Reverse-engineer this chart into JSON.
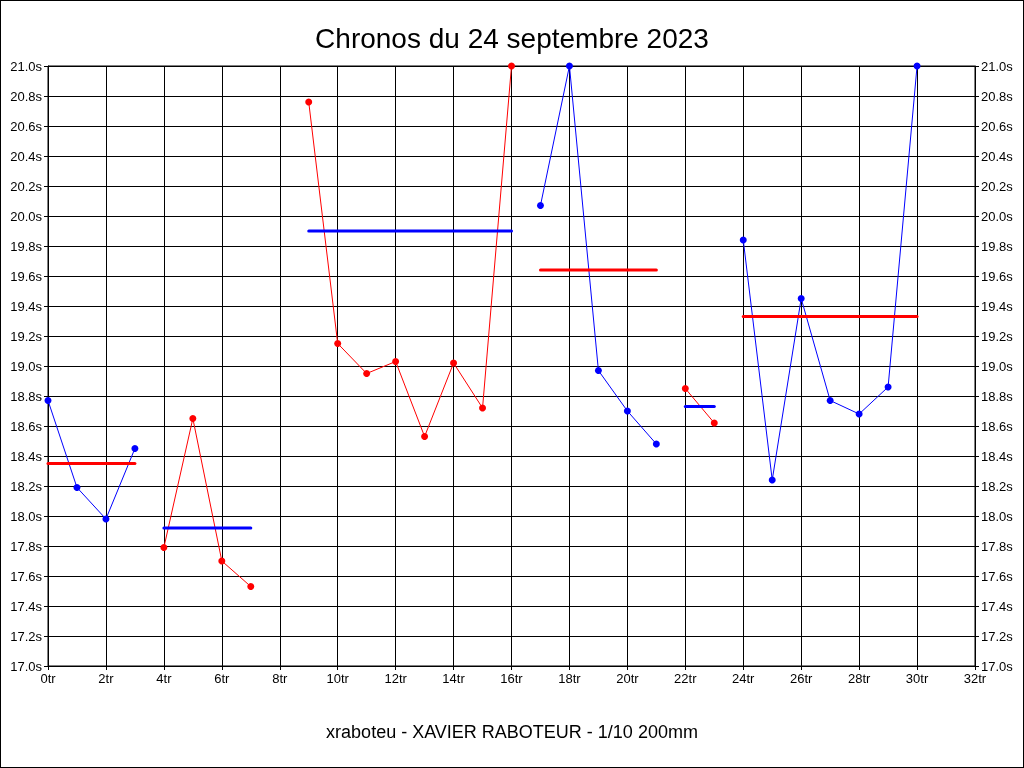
{
  "chart_data": {
    "type": "line",
    "title": "Chronos du 24 septembre 2023",
    "annotations": [
      "xraboteu - XAVIER RABOTEUR - 1/10 200mm"
    ],
    "xlim": [
      0,
      32
    ],
    "xticks": [
      {
        "value": 0,
        "label": "0tr"
      },
      {
        "value": 2,
        "label": "2tr"
      },
      {
        "value": 4,
        "label": "4tr"
      },
      {
        "value": 6,
        "label": "6tr"
      },
      {
        "value": 8,
        "label": "8tr"
      },
      {
        "value": 10,
        "label": "10tr"
      },
      {
        "value": 12,
        "label": "12tr"
      },
      {
        "value": 14,
        "label": "14tr"
      },
      {
        "value": 16,
        "label": "16tr"
      },
      {
        "value": 18,
        "label": "18tr"
      },
      {
        "value": 20,
        "label": "20tr"
      },
      {
        "value": 22,
        "label": "22tr"
      },
      {
        "value": 24,
        "label": "24tr"
      },
      {
        "value": 26,
        "label": "26tr"
      },
      {
        "value": 28,
        "label": "28tr"
      },
      {
        "value": 30,
        "label": "30tr"
      },
      {
        "value": 32,
        "label": "32tr"
      }
    ],
    "ylim": [
      17,
      21
    ],
    "yticks": [
      {
        "value": 17.0,
        "label": "17.0s"
      },
      {
        "value": 17.2,
        "label": "17.2s"
      },
      {
        "value": 17.4,
        "label": "17.4s"
      },
      {
        "value": 17.6,
        "label": "17.6s"
      },
      {
        "value": 17.8,
        "label": "17.8s"
      },
      {
        "value": 18.0,
        "label": "18.0s"
      },
      {
        "value": 18.2,
        "label": "18.2s"
      },
      {
        "value": 18.4,
        "label": "18.4s"
      },
      {
        "value": 18.6,
        "label": "18.6s"
      },
      {
        "value": 18.8,
        "label": "18.8s"
      },
      {
        "value": 19.0,
        "label": "19.0s"
      },
      {
        "value": 19.2,
        "label": "19.2s"
      },
      {
        "value": 19.4,
        "label": "19.4s"
      },
      {
        "value": 19.6,
        "label": "19.6s"
      },
      {
        "value": 19.8,
        "label": "19.8s"
      },
      {
        "value": 20.0,
        "label": "20.0s"
      },
      {
        "value": 20.2,
        "label": "20.2s"
      },
      {
        "value": 20.4,
        "label": "20.4s"
      },
      {
        "value": 20.6,
        "label": "20.6s"
      },
      {
        "value": 20.8,
        "label": "20.8s"
      },
      {
        "value": 21.0,
        "label": "21.0s"
      }
    ],
    "y2lim": [
      17,
      21
    ],
    "y2ticks": [
      {
        "value": 17.0,
        "label": "17.0s"
      },
      {
        "value": 17.2,
        "label": "17.2s"
      },
      {
        "value": 17.4,
        "label": "17.4s"
      },
      {
        "value": 17.6,
        "label": "17.6s"
      },
      {
        "value": 17.8,
        "label": "17.8s"
      },
      {
        "value": 18.0,
        "label": "18.0s"
      },
      {
        "value": 18.2,
        "label": "18.2s"
      },
      {
        "value": 18.4,
        "label": "18.4s"
      },
      {
        "value": 18.6,
        "label": "18.6s"
      },
      {
        "value": 18.8,
        "label": "18.8s"
      },
      {
        "value": 19.0,
        "label": "19.0s"
      },
      {
        "value": 19.2,
        "label": "19.2s"
      },
      {
        "value": 19.4,
        "label": "19.4s"
      },
      {
        "value": 19.6,
        "label": "19.6s"
      },
      {
        "value": 19.8,
        "label": "19.8s"
      },
      {
        "value": 20.0,
        "label": "20.0s"
      },
      {
        "value": 20.2,
        "label": "20.2s"
      },
      {
        "value": 20.4,
        "label": "20.4s"
      },
      {
        "value": 20.6,
        "label": "20.6s"
      },
      {
        "value": 20.8,
        "label": "20.8s"
      },
      {
        "value": 21.0,
        "label": "21.0s"
      }
    ],
    "grid": true,
    "marker": "circle",
    "series": [
      {
        "color": "#0000ff",
        "x": [
          0,
          1,
          2,
          3
        ],
        "values": [
          18.77,
          18.19,
          17.98,
          18.45
        ]
      },
      {
        "color": "#ff0000",
        "x": [
          0,
          3
        ],
        "values": [
          18.35,
          18.35
        ],
        "marker": "none"
      },
      {
        "color": "#ff0000",
        "x": [
          4,
          5,
          6,
          7
        ],
        "values": [
          17.79,
          18.65,
          17.7,
          17.53
        ]
      },
      {
        "color": "#0000ff",
        "x": [
          4,
          7
        ],
        "values": [
          17.92,
          17.92
        ],
        "marker": "none"
      },
      {
        "color": "#ff0000",
        "x": [
          9,
          10,
          11,
          12,
          13,
          14,
          15,
          16
        ],
        "values": [
          20.76,
          19.15,
          18.95,
          19.03,
          18.53,
          19.02,
          18.72,
          21.0
        ]
      },
      {
        "color": "#0000ff",
        "x": [
          9,
          16
        ],
        "values": [
          19.9,
          19.9
        ],
        "marker": "none"
      },
      {
        "color": "#0000ff",
        "x": [
          17,
          18,
          19,
          20,
          21
        ],
        "values": [
          20.07,
          21.0,
          18.97,
          18.7,
          18.48
        ]
      },
      {
        "color": "#ff0000",
        "x": [
          17,
          21
        ],
        "values": [
          19.64,
          19.64
        ],
        "marker": "none"
      },
      {
        "color": "#ff0000",
        "x": [
          22,
          23
        ],
        "values": [
          18.85,
          18.62
        ]
      },
      {
        "color": "#0000ff",
        "x": [
          22,
          23
        ],
        "values": [
          18.73,
          18.73
        ],
        "marker": "none"
      },
      {
        "color": "#0000ff",
        "x": [
          24,
          25,
          26,
          27,
          28,
          29,
          30
        ],
        "values": [
          19.84,
          18.24,
          19.45,
          18.77,
          18.68,
          18.86,
          21.0
        ]
      },
      {
        "color": "#ff0000",
        "x": [
          24,
          30
        ],
        "values": [
          19.33,
          19.33
        ],
        "marker": "none"
      }
    ]
  }
}
